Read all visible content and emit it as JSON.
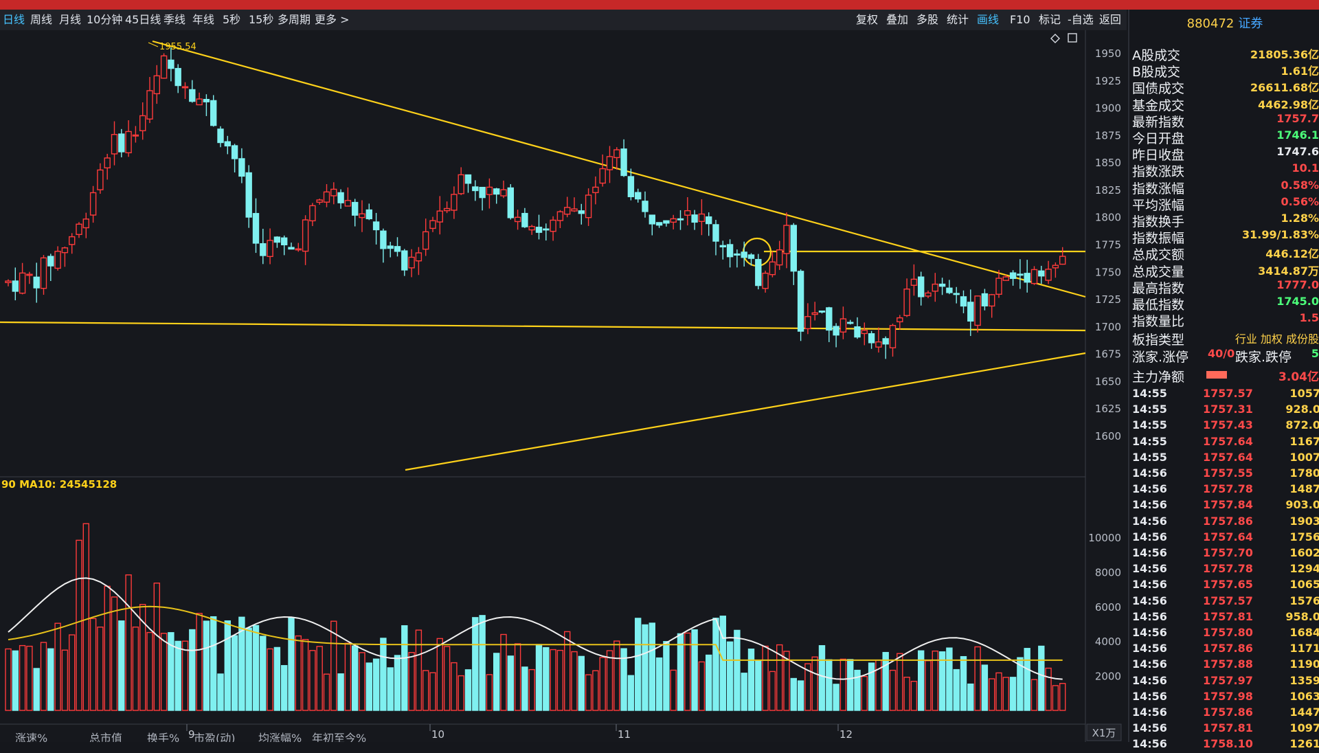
{
  "toolbar": {
    "periods": [
      "日线",
      "周线",
      "月线",
      "10分钟",
      "45日线",
      "季线",
      "年线",
      "5秒",
      "15秒",
      "多周期",
      "更多 >"
    ],
    "tools": [
      "复权",
      "叠加",
      "多股",
      "统计",
      "画线",
      "F10",
      "标记",
      "-自选",
      "返回"
    ]
  },
  "chart": {
    "price_label_high": "1955.54",
    "y_price_ticks": [
      "1950",
      "1925",
      "1900",
      "1875",
      "1850",
      "1825",
      "1800",
      "1775",
      "1750",
      "1725",
      "1700",
      "1675",
      "1650",
      "1625",
      "1600"
    ],
    "volume_label": "90  MA10: 24545128",
    "y_volume_ticks": [
      "10000",
      "8000",
      "6000",
      "4000",
      "2000"
    ],
    "volume_unit": "X1万",
    "x_month_labels": [
      "9",
      "10",
      "11",
      "12"
    ],
    "period_label": "日线",
    "bottom_tabs": [
      "涨速%",
      "总市值",
      "换手%",
      "市盈(动)",
      "均涨幅%",
      "年初至今%"
    ],
    "colors": {
      "up": "#ff3b3b",
      "down": "#7ff0f0",
      "trendline": "#ffd21a",
      "ma": "#f0f0f0",
      "ma2": "#e8c21a"
    }
  },
  "side": {
    "title_code": "880472",
    "title_name": "证券",
    "stats": [
      {
        "label": "A股成交",
        "value": "21805.36亿",
        "color": "#ffd24a"
      },
      {
        "label": "B股成交",
        "value": "1.61亿",
        "color": "#ffd24a"
      },
      {
        "label": "国债成交",
        "value": "26611.68亿",
        "color": "#ffd24a"
      },
      {
        "label": "基金成交",
        "value": "4462.98亿",
        "color": "#ffd24a"
      },
      {
        "label": "最新指数",
        "value": "1757.7",
        "color": "#ff4a4a"
      },
      {
        "label": "今日开盘",
        "value": "1746.1",
        "color": "#4cff7a"
      },
      {
        "label": "昨日收盘",
        "value": "1747.6",
        "color": "#e6e9ee"
      },
      {
        "label": "指数涨跌",
        "value": "10.1",
        "color": "#ff4a4a"
      },
      {
        "label": "指数涨幅",
        "value": "0.58%",
        "color": "#ff4a4a"
      },
      {
        "label": "平均涨幅",
        "value": "0.56%",
        "color": "#ff4a4a"
      },
      {
        "label": "指数换手",
        "value": "1.28%",
        "color": "#ffd24a"
      },
      {
        "label": "指数振幅",
        "value": "31.99/1.83%",
        "color": "#ffd24a"
      },
      {
        "label": "总成交额",
        "value": "446.12亿",
        "color": "#ffd24a"
      },
      {
        "label": "总成交量",
        "value": "3414.87万",
        "color": "#ffd24a"
      },
      {
        "label": "最高指数",
        "value": "1777.0",
        "color": "#ff4a4a"
      },
      {
        "label": "最低指数",
        "value": "1745.0",
        "color": "#4cff7a"
      },
      {
        "label": "指数量比",
        "value": "1.5",
        "color": "#ff4a4a"
      }
    ],
    "index_type": {
      "label": "板指类型",
      "value": "行业 加权 成份股"
    },
    "up_down": {
      "label": "涨家.涨停",
      "value": "40/0",
      "label2": "跌家.跌停",
      "value2": "5"
    },
    "main_flow": {
      "label": "主力净额",
      "value": "3.04亿"
    },
    "ticks": [
      {
        "t": "14:55",
        "p": "1757.57",
        "v": "1057"
      },
      {
        "t": "14:55",
        "p": "1757.31",
        "v": "928.0"
      },
      {
        "t": "14:55",
        "p": "1757.43",
        "v": "872.0"
      },
      {
        "t": "14:55",
        "p": "1757.64",
        "v": "1167"
      },
      {
        "t": "14:55",
        "p": "1757.64",
        "v": "1007"
      },
      {
        "t": "14:56",
        "p": "1757.55",
        "v": "1780"
      },
      {
        "t": "14:56",
        "p": "1757.78",
        "v": "1487"
      },
      {
        "t": "14:56",
        "p": "1757.84",
        "v": "903.0"
      },
      {
        "t": "14:56",
        "p": "1757.86",
        "v": "1903"
      },
      {
        "t": "14:56",
        "p": "1757.64",
        "v": "1756"
      },
      {
        "t": "14:56",
        "p": "1757.70",
        "v": "1602"
      },
      {
        "t": "14:56",
        "p": "1757.78",
        "v": "1294"
      },
      {
        "t": "14:56",
        "p": "1757.65",
        "v": "1065"
      },
      {
        "t": "14:56",
        "p": "1757.57",
        "v": "1576"
      },
      {
        "t": "14:56",
        "p": "1757.81",
        "v": "958.0"
      },
      {
        "t": "14:56",
        "p": "1757.80",
        "v": "1684"
      },
      {
        "t": "14:56",
        "p": "1757.86",
        "v": "1171"
      },
      {
        "t": "14:56",
        "p": "1757.88",
        "v": "1190"
      },
      {
        "t": "14:56",
        "p": "1757.97",
        "v": "1359"
      },
      {
        "t": "14:56",
        "p": "1757.98",
        "v": "1063"
      },
      {
        "t": "14:56",
        "p": "1757.86",
        "v": "1447"
      },
      {
        "t": "14:56",
        "p": "1757.81",
        "v": "1097"
      },
      {
        "t": "14:56",
        "p": "1758.10",
        "v": "1261"
      }
    ]
  }
}
